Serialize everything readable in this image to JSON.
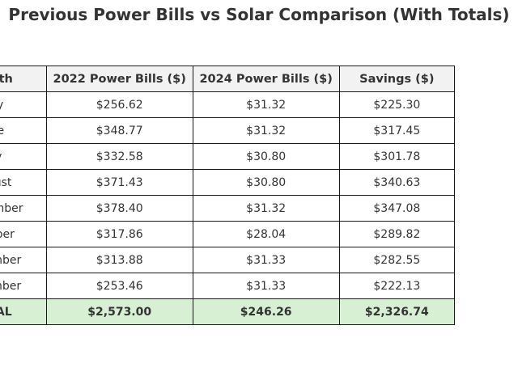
{
  "chart_data": {
    "type": "table",
    "title": "Previous Power Bills vs Solar Comparison (With Totals)",
    "columns": [
      "Month",
      "2022 Power Bills ($)",
      "2024 Power Bills ($)",
      "Savings ($)"
    ],
    "rows": [
      [
        "May",
        "$256.62",
        "$31.32",
        "$225.30"
      ],
      [
        "June",
        "$348.77",
        "$31.32",
        "$317.45"
      ],
      [
        "July",
        "$332.58",
        "$30.80",
        "$301.78"
      ],
      [
        "August",
        "$371.43",
        "$30.80",
        "$340.63"
      ],
      [
        "September",
        "$378.40",
        "$31.32",
        "$347.08"
      ],
      [
        "October",
        "$317.86",
        "$28.04",
        "$289.82"
      ],
      [
        "November",
        "$313.88",
        "$31.33",
        "$282.55"
      ],
      [
        "December",
        "$253.46",
        "$31.33",
        "$222.13"
      ]
    ],
    "total_row": [
      "TOTAL",
      "$2,573.00",
      "$246.26",
      "$2,326.74"
    ],
    "colors": {
      "header_background": "#f2f2f2",
      "total_background": "#d7f0d4",
      "border": "#1a1a1a"
    }
  }
}
